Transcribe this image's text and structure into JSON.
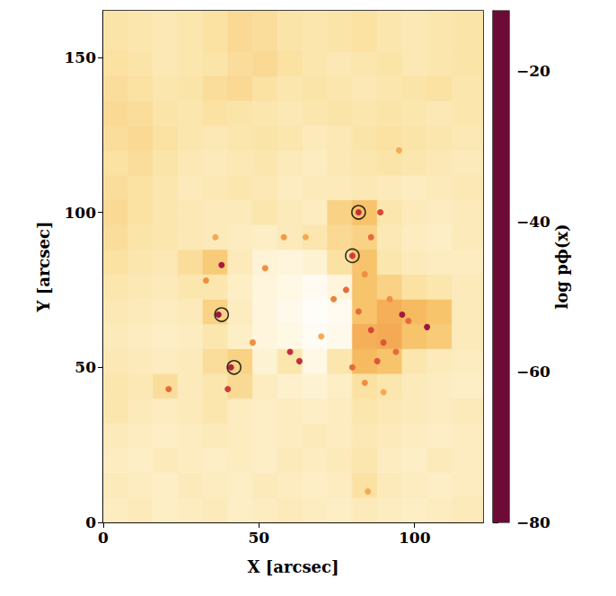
{
  "chart_data": {
    "type": "heatmap",
    "x_label": "X [arcsec]",
    "y_label": "Y [arcsec]",
    "xlim": [
      0,
      122
    ],
    "ylim": [
      0,
      165
    ],
    "xticks": [
      0,
      50,
      100
    ],
    "yticks": [
      0,
      50,
      100,
      150
    ],
    "x_edges": [
      0,
      8,
      16,
      24,
      32,
      40,
      48,
      56,
      64,
      72,
      80,
      88,
      96,
      104,
      112,
      122
    ],
    "y_edges": [
      0,
      8,
      16,
      24,
      32,
      40,
      48,
      56,
      64,
      72,
      80,
      88,
      96,
      104,
      112,
      120,
      128,
      136,
      144,
      152,
      165
    ],
    "z": [
      [
        -27,
        -28,
        -26,
        -27,
        -28,
        -26,
        -27,
        -28,
        -27,
        -26,
        -28,
        -27,
        -26,
        -27,
        -28
      ],
      [
        -28,
        -27,
        -26,
        -28,
        -27,
        -26,
        -28,
        -27,
        -26,
        -27,
        -32,
        -28,
        -27,
        -26,
        -27
      ],
      [
        -27,
        -26,
        -28,
        -27,
        -26,
        -27,
        -26,
        -28,
        -27,
        -28,
        -30,
        -27,
        -26,
        -28,
        -27
      ],
      [
        -28,
        -27,
        -26,
        -27,
        -28,
        -27,
        -26,
        -27,
        -28,
        -27,
        -29,
        -28,
        -27,
        -26,
        -27
      ],
      [
        -30,
        -28,
        -27,
        -28,
        -30,
        -27,
        -26,
        -27,
        -26,
        -27,
        -30,
        -29,
        -28,
        -27,
        -28
      ],
      [
        -30,
        -29,
        -33,
        -28,
        -30,
        -34,
        -27,
        -25,
        -24,
        -26,
        -32,
        -30,
        -28,
        -27,
        -26
      ],
      [
        -29,
        -28,
        -27,
        -28,
        -33,
        -36,
        -24,
        -30,
        -20,
        -30,
        -42,
        -40,
        -30,
        -28,
        -27
      ],
      [
        -28,
        -27,
        -26,
        -27,
        -30,
        -26,
        -22,
        -20,
        -15,
        -18,
        -44,
        -45,
        -40,
        -38,
        -28
      ],
      [
        -29,
        -28,
        -27,
        -28,
        -36,
        -27,
        -22,
        -18,
        -14,
        -16,
        -40,
        -44,
        -42,
        -40,
        -28
      ],
      [
        -30,
        -29,
        -28,
        -30,
        -30,
        -26,
        -22,
        -20,
        -16,
        -22,
        -40,
        -36,
        -32,
        -30,
        -28
      ],
      [
        -32,
        -30,
        -29,
        -33,
        -38,
        -28,
        -23,
        -22,
        -24,
        -32,
        -40,
        -30,
        -28,
        -27,
        -27
      ],
      [
        -33,
        -31,
        -30,
        -29,
        -28,
        -27,
        -26,
        -28,
        -30,
        -34,
        -36,
        -29,
        -27,
        -26,
        -28
      ],
      [
        -34,
        -32,
        -30,
        -29,
        -28,
        -28,
        -30,
        -28,
        -27,
        -36,
        -40,
        -30,
        -28,
        -27,
        -28
      ],
      [
        -33,
        -32,
        -30,
        -28,
        -29,
        -30,
        -29,
        -27,
        -28,
        -28,
        -29,
        -28,
        -27,
        -28,
        -29
      ],
      [
        -32,
        -33,
        -31,
        -29,
        -28,
        -29,
        -30,
        -28,
        -27,
        -29,
        -30,
        -31,
        -30,
        -29,
        -28
      ],
      [
        -33,
        -34,
        -32,
        -30,
        -29,
        -30,
        -31,
        -30,
        -28,
        -29,
        -31,
        -32,
        -31,
        -30,
        -29
      ],
      [
        -34,
        -33,
        -31,
        -30,
        -32,
        -31,
        -30,
        -29,
        -30,
        -31,
        -30,
        -31,
        -30,
        -29,
        -30
      ],
      [
        -33,
        -32,
        -30,
        -31,
        -33,
        -34,
        -32,
        -30,
        -31,
        -30,
        -29,
        -30,
        -31,
        -32,
        -30
      ],
      [
        -32,
        -31,
        -29,
        -30,
        -31,
        -33,
        -34,
        -32,
        -30,
        -29,
        -30,
        -31,
        -29,
        -30,
        -31
      ],
      [
        -31,
        -30,
        -29,
        -30,
        -32,
        -34,
        -33,
        -31,
        -30,
        -31,
        -32,
        -30,
        -29,
        -30,
        -31
      ]
    ],
    "spots": [
      [
        38,
        83,
        -70
      ],
      [
        37,
        67,
        -72
      ],
      [
        41,
        50,
        -68
      ],
      [
        82,
        100,
        -65
      ],
      [
        89,
        100,
        -60
      ],
      [
        80,
        86,
        -62
      ],
      [
        96,
        67,
        -70
      ],
      [
        104,
        63,
        -72
      ],
      [
        40,
        43,
        -62
      ],
      [
        21,
        43,
        -55
      ],
      [
        33,
        78,
        -50
      ],
      [
        60,
        55,
        -65
      ],
      [
        63,
        52,
        -65
      ],
      [
        52,
        82,
        -50
      ],
      [
        78,
        75,
        -55
      ],
      [
        74,
        72,
        -52
      ],
      [
        84,
        80,
        -50
      ],
      [
        86,
        62,
        -60
      ],
      [
        90,
        58,
        -58
      ],
      [
        94,
        55,
        -55
      ],
      [
        88,
        52,
        -58
      ],
      [
        80,
        50,
        -55
      ],
      [
        84,
        45,
        -50
      ],
      [
        98,
        65,
        -55
      ],
      [
        92,
        72,
        -50
      ],
      [
        82,
        68,
        -55
      ],
      [
        86,
        92,
        -55
      ],
      [
        90,
        42,
        -45
      ],
      [
        48,
        58,
        -50
      ],
      [
        36,
        92,
        -45
      ],
      [
        70,
        60,
        -45
      ],
      [
        95,
        120,
        -45
      ],
      [
        85,
        10,
        -45
      ],
      [
        65,
        92,
        -45
      ],
      [
        58,
        92,
        -48
      ]
    ],
    "circles": [
      [
        82,
        100
      ],
      [
        80,
        86
      ],
      [
        38,
        67
      ],
      [
        42,
        50
      ]
    ],
    "colorbar": {
      "label": "log pϕ(x)",
      "range": [
        -80,
        -12
      ],
      "ticks": [
        {
          "value": -80,
          "label": "−80"
        },
        {
          "value": -60,
          "label": "−60"
        },
        {
          "value": -40,
          "label": "−40"
        },
        {
          "value": -20,
          "label": "−20"
        }
      ]
    }
  }
}
